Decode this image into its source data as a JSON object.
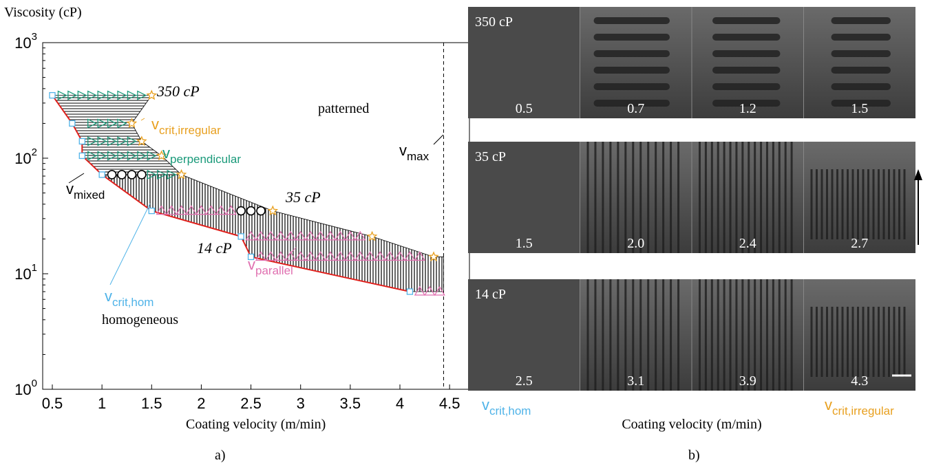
{
  "chart_data": {
    "type": "scatter",
    "y_label": "Viscosity (cP)",
    "x_label": "Coating velocity (m/min)",
    "xlim": [
      0.403,
      4.7
    ],
    "ylim": [
      1,
      1000
    ],
    "y_scale": "log",
    "xticks": [
      0.5,
      1,
      1.5,
      2,
      2.5,
      3,
      3.5,
      4,
      4.5
    ],
    "yticks": [
      {
        "value": 1,
        "label": "10",
        "exponent": "0"
      },
      {
        "value": 10,
        "label": "10",
        "exponent": "1"
      },
      {
        "value": 100,
        "label": "10",
        "exponent": "2"
      },
      {
        "value": 1000,
        "label": "10",
        "exponent": "3"
      }
    ],
    "vmax": 4.44,
    "vmax_name": "v",
    "vmax_subscript": "max",
    "boundary_color": "#e0201c",
    "series": [
      {
        "name": "v",
        "subscript": "crit,hom",
        "color": "#4fb3e8",
        "marker": "square",
        "x": [
          0.5,
          0.7,
          0.8,
          0.8,
          1.0,
          1.5,
          2.4,
          2.5,
          4.1
        ],
        "values": [
          350,
          200,
          140,
          105,
          72,
          35,
          21,
          14,
          7
        ]
      },
      {
        "name": "v",
        "subscript": "crit,irregular",
        "color": "#e8a020",
        "marker": "star",
        "x": [
          1.5,
          1.3,
          1.4,
          1.6,
          1.8,
          2.72,
          3.72,
          4.34
        ],
        "values": [
          350,
          200,
          140,
          105,
          72,
          35,
          21,
          14
        ]
      },
      {
        "name": "v",
        "subscript": "perpendicular",
        "color": "#1a9a7a",
        "marker": "triangle-right",
        "x": [
          0.6,
          0.7,
          0.8,
          0.9,
          1.0,
          1.1,
          1.2,
          1.3,
          1.4,
          0.9,
          1.0,
          1.1,
          1.2,
          0.9,
          1.0,
          1.1,
          1.2,
          1.3,
          0.9,
          1.0,
          1.1,
          1.2,
          1.3,
          1.4,
          1.5,
          1.5,
          1.6,
          1.7
        ],
        "values": [
          350,
          350,
          350,
          350,
          350,
          350,
          350,
          350,
          350,
          200,
          200,
          200,
          200,
          140,
          140,
          140,
          140,
          140,
          105,
          105,
          105,
          105,
          105,
          105,
          105,
          72,
          72,
          72
        ]
      },
      {
        "name": "v",
        "subscript": "mixed",
        "color": "#000000",
        "marker": "circle",
        "x": [
          1.1,
          1.2,
          1.3,
          1.4,
          2.4,
          2.5,
          2.6
        ],
        "values": [
          72,
          72,
          72,
          72,
          35,
          35,
          35
        ]
      },
      {
        "name": "v",
        "subscript": "parallel",
        "color": "#e070b0",
        "marker": "triangle-up",
        "x": [
          1.6,
          1.7,
          1.8,
          1.9,
          2.0,
          2.1,
          2.2,
          2.3,
          2.5,
          2.6,
          2.7,
          2.8,
          2.9,
          3.0,
          3.1,
          3.2,
          3.3,
          3.4,
          3.5,
          3.6,
          2.6,
          2.7,
          2.8,
          2.9,
          3.0,
          3.1,
          3.2,
          3.3,
          3.4,
          3.5,
          3.6,
          3.7,
          3.8,
          3.9,
          4.0,
          4.1,
          4.2,
          4.2,
          4.3,
          4.4
        ],
        "values": [
          35,
          35,
          35,
          35,
          35,
          35,
          35,
          35,
          21,
          21,
          21,
          21,
          21,
          21,
          21,
          21,
          21,
          21,
          21,
          21,
          14,
          14,
          14,
          14,
          14,
          14,
          14,
          14,
          14,
          14,
          14,
          14,
          14,
          14,
          14,
          14,
          14,
          7,
          7,
          7
        ]
      }
    ],
    "annotations": {
      "cp350": "350 cP",
      "cp35": "35 cP",
      "cp14": "14 cP",
      "patterned": "patterned",
      "homogeneous": "homogeneous"
    }
  },
  "panel_b": {
    "rows": [
      {
        "label": "350 cP",
        "speeds": [
          "0.5",
          "0.7",
          "1.2",
          "1.5"
        ]
      },
      {
        "label": "35 cP",
        "speeds": [
          "1.5",
          "2.0",
          "2.4",
          "2.7"
        ]
      },
      {
        "label": "14 cP",
        "speeds": [
          "2.5",
          "3.1",
          "3.9",
          "4.3"
        ]
      }
    ],
    "left_name": "v",
    "left_subscript": "crit,hom",
    "right_name": "v",
    "right_subscript": "crit,irregular",
    "x_label": "Coating velocity (m/min)"
  },
  "panel_labels": [
    "a)",
    "b)"
  ]
}
